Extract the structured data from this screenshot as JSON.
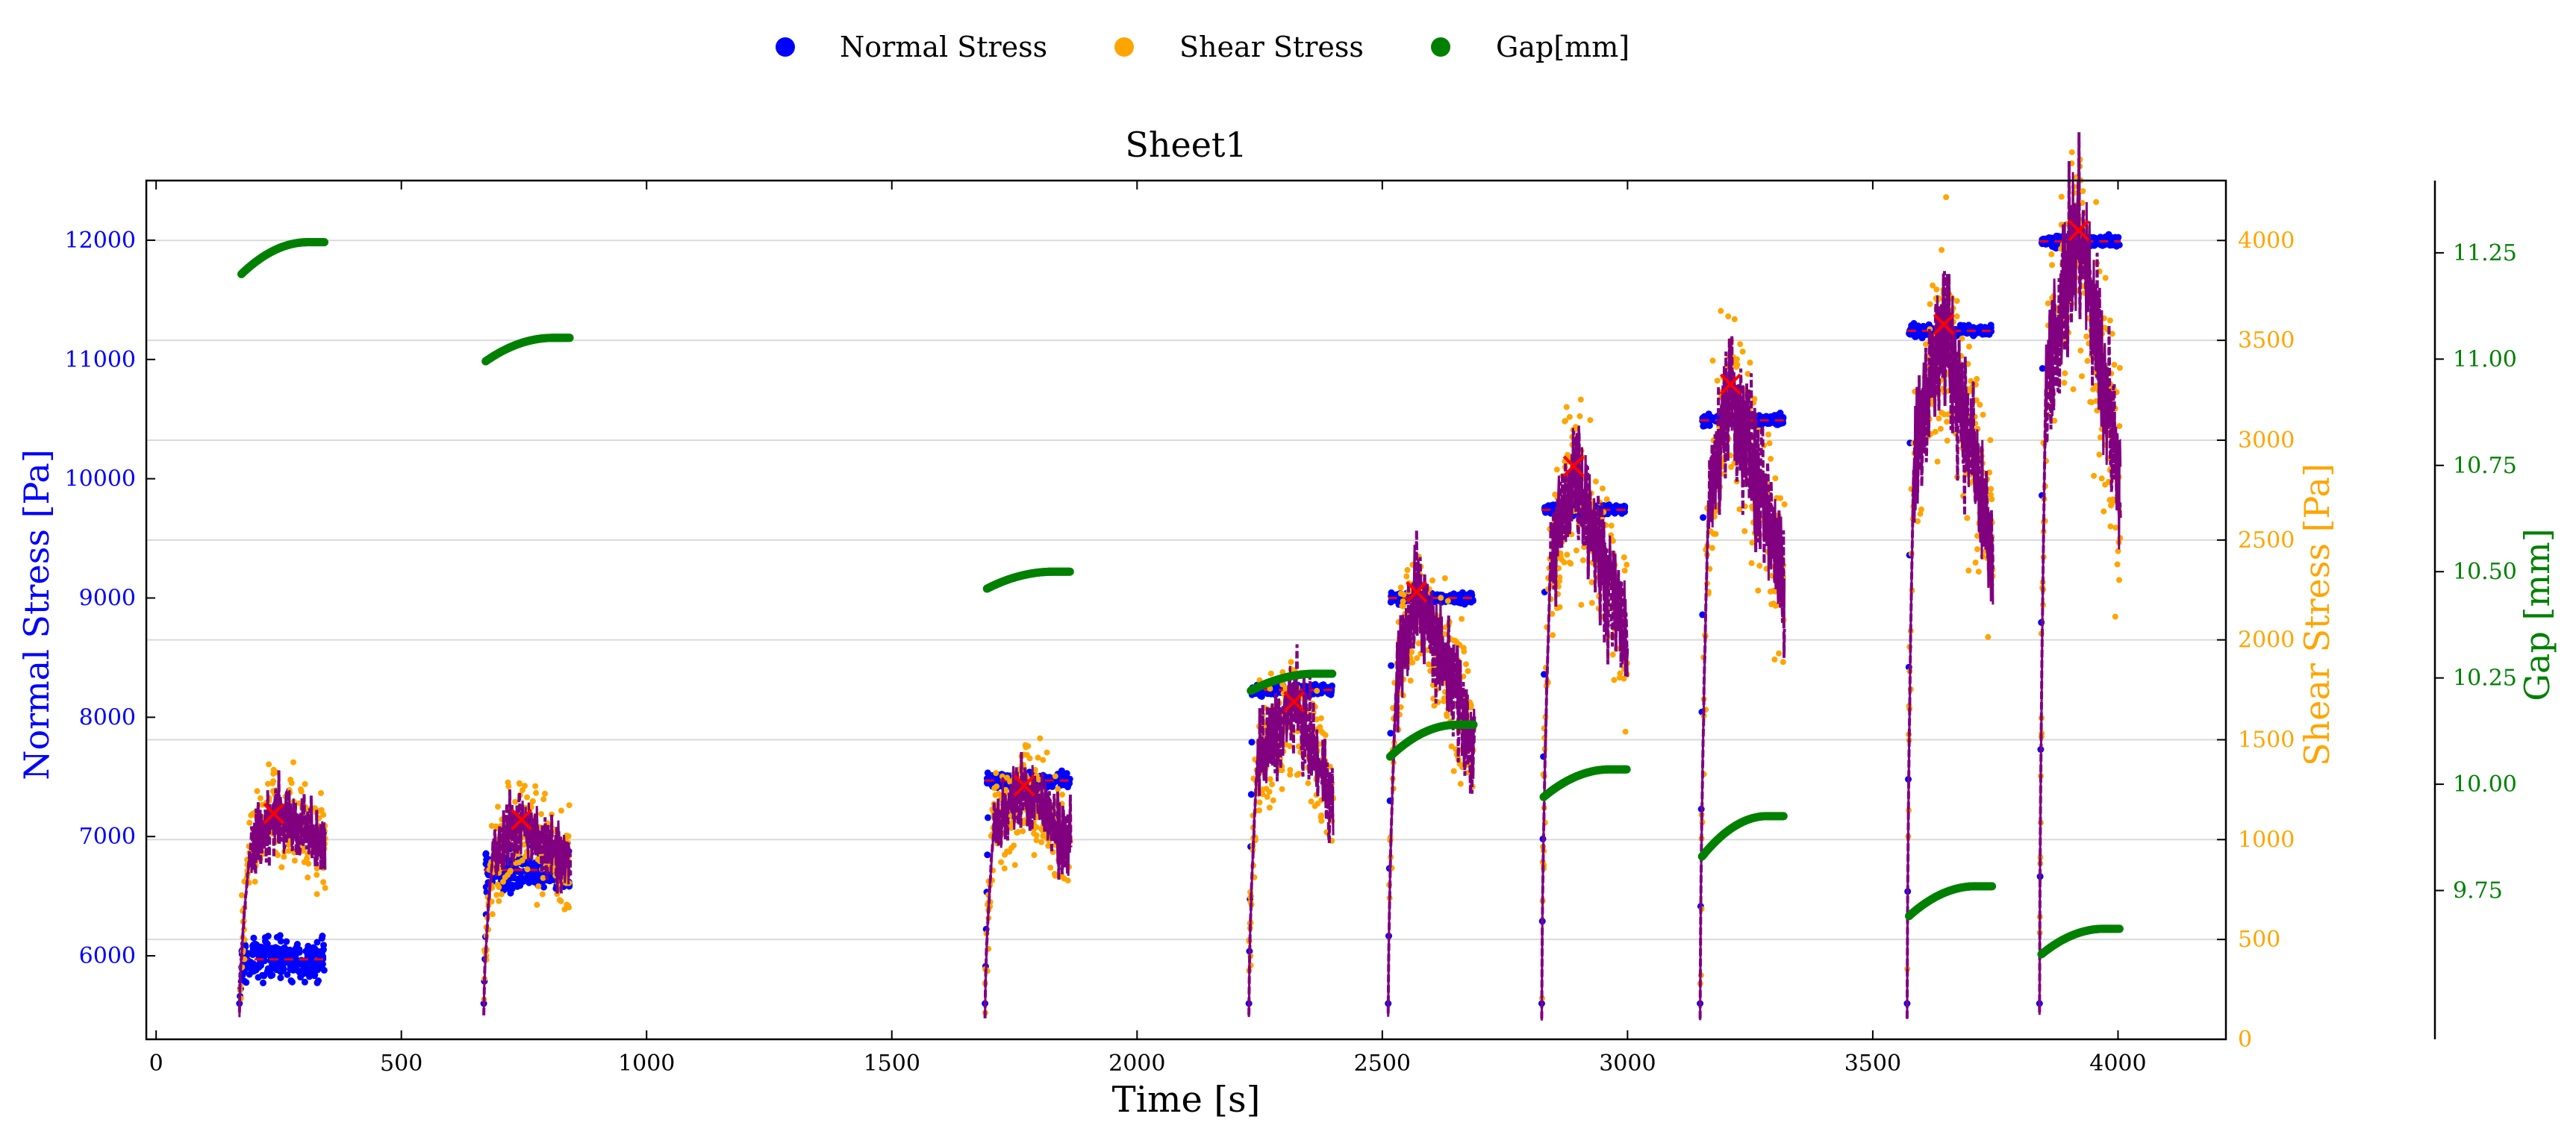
{
  "chart_data": {
    "type": "scatter",
    "title": "Sheet1",
    "xlabel": "Time [s]",
    "ylabel_left": "Normal Stress [Pa]",
    "ylabel_right": "Shear Stress [Pa]",
    "ylabel_far_right": "Gap [mm]",
    "xlim": [
      -20,
      4220
    ],
    "ylim_left": [
      5300,
      12500
    ],
    "ylim_right": [
      0,
      4300
    ],
    "ylim_far_right": [
      9.4,
      11.42
    ],
    "x_ticks": [
      0,
      500,
      1000,
      1500,
      2000,
      2500,
      3000,
      3500,
      4000
    ],
    "y_ticks_left": [
      6000,
      7000,
      8000,
      9000,
      10000,
      11000,
      12000
    ],
    "y_ticks_right": [
      0,
      500,
      1000,
      1500,
      2000,
      2500,
      3000,
      3500,
      4000
    ],
    "y_ticks_far_right": [
      9.75,
      10.0,
      10.25,
      10.5,
      10.75,
      11.0,
      11.25
    ],
    "grid": "horizontal",
    "legend_placement": "top-center",
    "legend": [
      {
        "label": "Normal Stress",
        "color": "#0000ff"
      },
      {
        "label": "Shear Stress",
        "color": "#ffa500"
      },
      {
        "label": "Gap[mm]",
        "color": "#008000"
      }
    ],
    "colors": {
      "normal": "#0000ff",
      "shear": "#ffa500",
      "gap": "#008000",
      "shear_line": "#800080",
      "marker": "#ff0000"
    },
    "segments": [
      {
        "t_start": 170,
        "t_end": 345,
        "t_peak": 240,
        "normal_mean": 5970,
        "normal_spread": 220,
        "shear_peak": 1130,
        "shear_end": 970,
        "gap_start": 11.2,
        "gap_end": 11.275,
        "ramp": 0.12
      },
      {
        "t_start": 668,
        "t_end": 845,
        "t_peak": 745,
        "normal_mean": 6720,
        "normal_spread": 200,
        "shear_peak": 1100,
        "shear_end": 860,
        "gap_start": 10.995,
        "gap_end": 11.05,
        "ramp": 0.1
      },
      {
        "t_start": 1690,
        "t_end": 1865,
        "t_peak": 1770,
        "normal_mean": 7470,
        "normal_spread": 70,
        "shear_peak": 1270,
        "shear_end": 960,
        "gap_start": 10.46,
        "gap_end": 10.5,
        "ramp": 0.1
      },
      {
        "t_start": 2228,
        "t_end": 2400,
        "t_peak": 2320,
        "normal_mean": 8230,
        "normal_spread": 55,
        "shear_peak": 1690,
        "shear_end": 1180,
        "gap_start": 10.22,
        "gap_end": 10.26,
        "ramp": 0.1
      },
      {
        "t_start": 2512,
        "t_end": 2688,
        "t_peak": 2570,
        "normal_mean": 9000,
        "normal_spread": 55,
        "shear_peak": 2240,
        "shear_end": 1500,
        "gap_start": 10.065,
        "gap_end": 10.14,
        "ramp": 0.1
      },
      {
        "t_start": 2825,
        "t_end": 3000,
        "t_peak": 2890,
        "normal_mean": 9740,
        "normal_spread": 55,
        "shear_peak": 2870,
        "shear_end": 2000,
        "gap_start": 9.97,
        "gap_end": 10.035,
        "ramp": 0.1
      },
      {
        "t_start": 3148,
        "t_end": 3320,
        "t_peak": 3210,
        "normal_mean": 10490,
        "normal_spread": 55,
        "shear_peak": 3280,
        "shear_end": 2300,
        "gap_start": 9.83,
        "gap_end": 9.925,
        "ramp": 0.1
      },
      {
        "t_start": 3570,
        "t_end": 3745,
        "t_peak": 3645,
        "normal_mean": 11240,
        "normal_spread": 55,
        "shear_peak": 3580,
        "shear_end": 2450,
        "gap_start": 9.69,
        "gap_end": 9.76,
        "ramp": 0.08
      },
      {
        "t_start": 3840,
        "t_end": 4005,
        "t_peak": 3920,
        "normal_mean": 11990,
        "normal_spread": 55,
        "shear_peak": 4050,
        "shear_end": 2800,
        "gap_start": 9.6,
        "gap_end": 9.66,
        "ramp": 0.08
      }
    ]
  }
}
